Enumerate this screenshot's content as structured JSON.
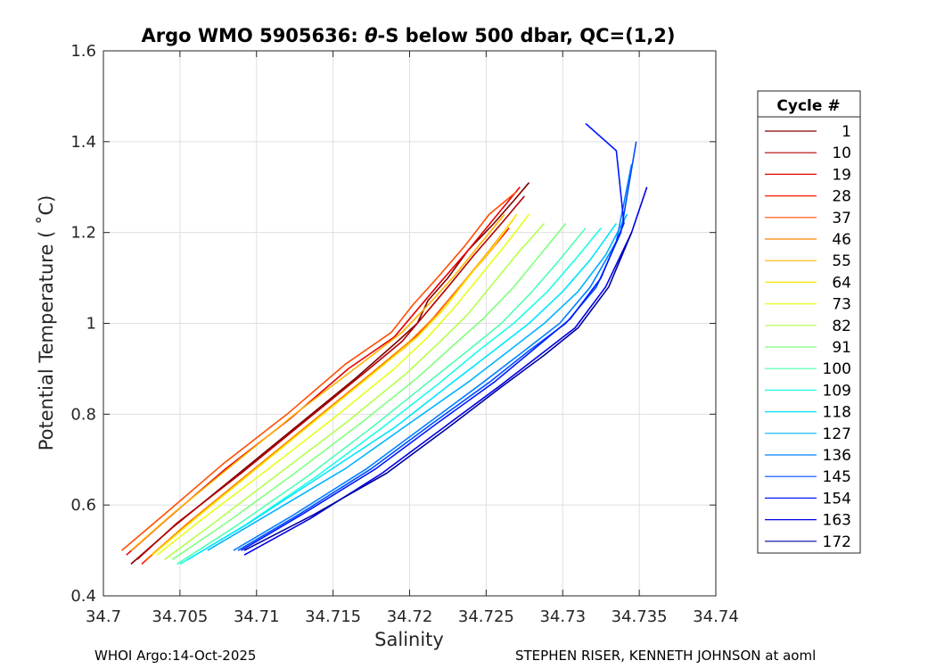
{
  "chart_data": {
    "type": "line",
    "title_prefix": "Argo WMO 5905636: ",
    "title_symbol": "θ",
    "title_suffix": "-S below 500 dbar,  QC=(1,2)",
    "xlabel": "Salinity",
    "ylabel": "Potential Temperature ( ˚C)",
    "xlim": [
      34.7,
      34.74
    ],
    "ylim": [
      0.4,
      1.6
    ],
    "xticks": [
      34.7,
      34.705,
      34.71,
      34.715,
      34.72,
      34.725,
      34.73,
      34.735,
      34.74
    ],
    "xtick_labels": [
      "34.7",
      "34.705",
      "34.71",
      "34.715",
      "34.72",
      "34.725",
      "34.73",
      "34.735",
      "34.74"
    ],
    "yticks": [
      0.4,
      0.6,
      0.8,
      1.0,
      1.2,
      1.4,
      1.6
    ],
    "ytick_labels": [
      "0.4",
      "0.6",
      "0.8",
      "1",
      "1.2",
      "1.4",
      "1.6"
    ],
    "grid": true,
    "legend": {
      "title": "Cycle #",
      "placement": "right",
      "entries": [
        {
          "label": "1",
          "color": "#800000"
        },
        {
          "label": "10",
          "color": "#b30000"
        },
        {
          "label": "19",
          "color": "#e60000"
        },
        {
          "label": "28",
          "color": "#ff1a00"
        },
        {
          "label": "37",
          "color": "#ff4d00"
        },
        {
          "label": "46",
          "color": "#ff8000"
        },
        {
          "label": "55",
          "color": "#ffb300"
        },
        {
          "label": "64",
          "color": "#ffe600"
        },
        {
          "label": "73",
          "color": "#e6ff1a"
        },
        {
          "label": "82",
          "color": "#b3ff4d"
        },
        {
          "label": "91",
          "color": "#80ff80"
        },
        {
          "label": "100",
          "color": "#4dffb3"
        },
        {
          "label": "109",
          "color": "#1affe6"
        },
        {
          "label": "118",
          "color": "#00e6ff"
        },
        {
          "label": "127",
          "color": "#00b3ff"
        },
        {
          "label": "136",
          "color": "#0080ff"
        },
        {
          "label": "145",
          "color": "#004dff"
        },
        {
          "label": "154",
          "color": "#001aff"
        },
        {
          "label": "163",
          "color": "#0000e6"
        },
        {
          "label": "172",
          "color": "#0000a0"
        }
      ]
    },
    "series": [
      {
        "color": "#800000",
        "x": [
          34.7018,
          34.7045,
          34.7085,
          34.7125,
          34.7165,
          34.7192,
          34.7205,
          34.7212,
          34.7225,
          34.7238,
          34.7255,
          34.7268,
          34.7278
        ],
        "y": [
          0.47,
          0.55,
          0.66,
          0.77,
          0.88,
          0.96,
          1.0,
          1.05,
          1.1,
          1.16,
          1.22,
          1.27,
          1.31
        ]
      },
      {
        "color": "#b30000",
        "x": [
          34.7022,
          34.7048,
          34.709,
          34.713,
          34.717,
          34.7195,
          34.721,
          34.7225,
          34.7242,
          34.726,
          34.7275
        ],
        "y": [
          0.48,
          0.56,
          0.67,
          0.78,
          0.89,
          0.96,
          1.02,
          1.08,
          1.15,
          1.22,
          1.28
        ]
      },
      {
        "color": "#e60000",
        "x": [
          34.7015,
          34.7042,
          34.708,
          34.7122,
          34.716,
          34.719,
          34.7205,
          34.722,
          34.7238,
          34.7255,
          34.7272
        ],
        "y": [
          0.49,
          0.57,
          0.68,
          0.79,
          0.9,
          0.97,
          1.03,
          1.09,
          1.16,
          1.23,
          1.3
        ]
      },
      {
        "color": "#ff1a00",
        "x": [
          34.7025,
          34.7052,
          34.7092,
          34.7132,
          34.7172,
          34.7198,
          34.7215,
          34.723,
          34.7248,
          34.7265
        ],
        "y": [
          0.47,
          0.55,
          0.66,
          0.77,
          0.88,
          0.95,
          1.01,
          1.07,
          1.14,
          1.21
        ]
      },
      {
        "color": "#ff4d00",
        "x": [
          34.7012,
          34.704,
          34.7078,
          34.712,
          34.7158,
          34.7188,
          34.7202,
          34.7218,
          34.7236,
          34.7252,
          34.727
        ],
        "y": [
          0.5,
          0.58,
          0.69,
          0.8,
          0.91,
          0.98,
          1.04,
          1.1,
          1.17,
          1.24,
          1.29
        ]
      },
      {
        "color": "#ff8000",
        "x": [
          34.7028,
          34.7055,
          34.7095,
          34.7135,
          34.7175,
          34.72,
          34.7218,
          34.7235,
          34.7252,
          34.7268
        ],
        "y": [
          0.48,
          0.56,
          0.67,
          0.78,
          0.89,
          0.96,
          1.02,
          1.09,
          1.16,
          1.23
        ]
      },
      {
        "color": "#ffb300",
        "x": [
          34.7018,
          34.7045,
          34.7085,
          34.7125,
          34.7168,
          34.7195,
          34.7212,
          34.7228,
          34.7245,
          34.7262
        ],
        "y": [
          0.5,
          0.58,
          0.69,
          0.8,
          0.91,
          0.98,
          1.04,
          1.1,
          1.17,
          1.24
        ]
      },
      {
        "color": "#ffe600",
        "x": [
          34.7032,
          34.706,
          34.71,
          34.714,
          34.718,
          34.7205,
          34.7222,
          34.7238,
          34.7255,
          34.727
        ],
        "y": [
          0.49,
          0.57,
          0.68,
          0.79,
          0.9,
          0.97,
          1.03,
          1.1,
          1.17,
          1.24
        ]
      },
      {
        "color": "#e6ff1a",
        "x": [
          34.7035,
          34.7065,
          34.7108,
          34.715,
          34.719,
          34.7212,
          34.7228,
          34.7245,
          34.7262,
          34.7278
        ],
        "y": [
          0.49,
          0.57,
          0.68,
          0.79,
          0.9,
          0.97,
          1.03,
          1.1,
          1.17,
          1.24
        ]
      },
      {
        "color": "#b3ff4d",
        "x": [
          34.704,
          34.7072,
          34.7115,
          34.7158,
          34.7198,
          34.722,
          34.7238,
          34.7255,
          34.7272,
          34.7288
        ],
        "y": [
          0.48,
          0.56,
          0.67,
          0.78,
          0.89,
          0.96,
          1.02,
          1.09,
          1.16,
          1.22
        ]
      },
      {
        "color": "#80ff80",
        "x": [
          34.7045,
          34.708,
          34.7125,
          34.7168,
          34.7205,
          34.7228,
          34.7248,
          34.7268,
          34.7285,
          34.7302
        ],
        "y": [
          0.48,
          0.56,
          0.67,
          0.78,
          0.88,
          0.95,
          1.01,
          1.08,
          1.15,
          1.22
        ]
      },
      {
        "color": "#4dffb3",
        "x": [
          34.7048,
          34.7085,
          34.7132,
          34.7175,
          34.7212,
          34.7238,
          34.726,
          34.728,
          34.7298,
          34.7315
        ],
        "y": [
          0.47,
          0.55,
          0.66,
          0.77,
          0.87,
          0.94,
          1.0,
          1.07,
          1.14,
          1.21
        ]
      },
      {
        "color": "#1affe6",
        "x": [
          34.705,
          34.709,
          34.7138,
          34.7182,
          34.722,
          34.7245,
          34.7268,
          34.729,
          34.7308,
          34.7325
        ],
        "y": [
          0.47,
          0.55,
          0.66,
          0.77,
          0.87,
          0.94,
          1.0,
          1.07,
          1.14,
          1.21
        ]
      },
      {
        "color": "#00e6ff",
        "x": [
          34.7055,
          34.7095,
          34.7145,
          34.719,
          34.7228,
          34.7255,
          34.7278,
          34.73,
          34.7318,
          34.7335
        ],
        "y": [
          0.48,
          0.56,
          0.67,
          0.77,
          0.87,
          0.94,
          1.0,
          1.07,
          1.14,
          1.22
        ]
      },
      {
        "color": "#00b3ff",
        "x": [
          34.7068,
          34.7108,
          34.7158,
          34.72,
          34.7238,
          34.7265,
          34.7288,
          34.731,
          34.7328,
          34.7342
        ],
        "y": [
          0.5,
          0.58,
          0.68,
          0.78,
          0.87,
          0.94,
          1.0,
          1.07,
          1.15,
          1.24
        ]
      },
      {
        "color": "#0080ff",
        "x": [
          34.7085,
          34.7125,
          34.7172,
          34.7212,
          34.7248,
          34.7275,
          34.7298,
          34.7318,
          34.7335,
          34.7345
        ],
        "y": [
          0.5,
          0.58,
          0.68,
          0.78,
          0.87,
          0.94,
          1.0,
          1.08,
          1.18,
          1.35
        ]
      },
      {
        "color": "#004dff",
        "x": [
          34.7088,
          34.7128,
          34.7175,
          34.7215,
          34.7252,
          34.7278,
          34.7302,
          34.7322,
          34.7338,
          34.7348
        ],
        "y": [
          0.5,
          0.58,
          0.68,
          0.78,
          0.87,
          0.94,
          1.0,
          1.08,
          1.2,
          1.4
        ]
      },
      {
        "color": "#001aff",
        "x": [
          34.709,
          34.713,
          34.7178,
          34.7218,
          34.7255,
          34.728,
          34.7305,
          34.7325,
          34.734,
          34.7335,
          34.7315
        ],
        "y": [
          0.5,
          0.58,
          0.68,
          0.78,
          0.87,
          0.94,
          1.01,
          1.1,
          1.22,
          1.38,
          1.44
        ]
      },
      {
        "color": "#0000e6",
        "x": [
          34.7092,
          34.7135,
          34.7182,
          34.7222,
          34.7258,
          34.7285,
          34.7308,
          34.7328,
          34.7345,
          34.7355
        ],
        "y": [
          0.49,
          0.57,
          0.67,
          0.77,
          0.86,
          0.93,
          0.99,
          1.08,
          1.2,
          1.3
        ]
      },
      {
        "color": "#0000a0",
        "x": [
          34.7092,
          34.7138,
          34.7185,
          34.7225,
          34.726,
          34.7288,
          34.731,
          34.733,
          34.7345
        ],
        "y": [
          0.5,
          0.58,
          0.67,
          0.77,
          0.86,
          0.93,
          0.99,
          1.08,
          1.2
        ]
      }
    ]
  },
  "footer": {
    "left": "WHOI Argo:14-Oct-2025",
    "right": "STEPHEN RISER, KENNETH JOHNSON at aoml"
  }
}
